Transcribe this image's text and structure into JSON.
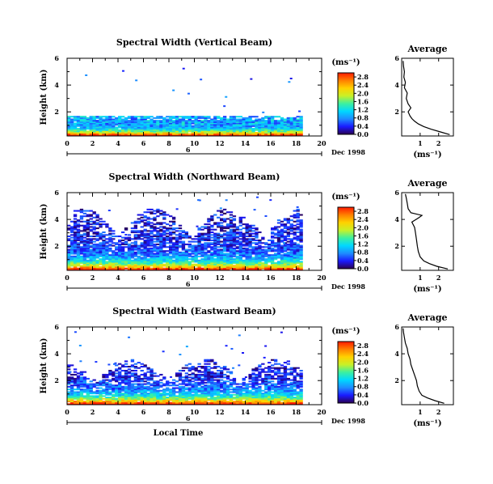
{
  "chart_data": [
    {
      "type": "heatmap",
      "title": "Spectral Width (Vertical Beam)",
      "ylabel": "Height (km)",
      "yticks": [
        "2",
        "4",
        "6"
      ],
      "ylim": [
        0.2,
        6.0
      ],
      "xticks": [
        "0",
        "2",
        "4",
        "6",
        "8",
        "10",
        "12",
        "14",
        "16",
        "18",
        "20"
      ],
      "xlim": [
        0,
        20
      ],
      "date_label": "Dec 1998",
      "day_marker": "6",
      "unit": "(ms⁻¹)",
      "colorbar_ticks": [
        "0.0",
        "0.4",
        "0.8",
        "1.2",
        "1.6",
        "2.0",
        "2.4",
        "2.8"
      ],
      "colorbar_range": [
        0.0,
        3.0
      ],
      "data_extent_hours": [
        0,
        18.3
      ],
      "max_height_km": 1.7,
      "avg_xticks": [
        "1",
        "2"
      ],
      "avg_xlim": [
        0,
        2.8
      ],
      "avg_ylim": [
        0.2,
        6.0
      ],
      "avg_yticks": [
        "2",
        "4",
        "6"
      ],
      "avg_profile": {
        "height": [
          0.3,
          0.5,
          0.7,
          0.9,
          1.1,
          1.3,
          1.5,
          1.7,
          2.0,
          2.3,
          2.6,
          3.0,
          3.4,
          3.8,
          4.2,
          4.6,
          5.0,
          5.4,
          5.8
        ],
        "width": [
          2.6,
          2.1,
          1.6,
          1.2,
          0.9,
          0.7,
          0.55,
          0.45,
          0.35,
          0.5,
          0.35,
          0.25,
          0.3,
          0.15,
          0.2,
          0.12,
          0.15,
          0.1,
          0.08
        ]
      }
    },
    {
      "type": "heatmap",
      "title": "Spectral Width (Northward Beam)",
      "ylabel": "Height (km)",
      "yticks": [
        "2",
        "4",
        "6"
      ],
      "ylim": [
        0.2,
        6.0
      ],
      "xticks": [
        "0",
        "2",
        "4",
        "6",
        "8",
        "10",
        "12",
        "14",
        "16",
        "18",
        "20"
      ],
      "xlim": [
        0,
        20
      ],
      "date_label": "Dec 1998",
      "day_marker": "6",
      "unit": "(ms⁻¹)",
      "colorbar_ticks": [
        "0.0",
        "0.4",
        "0.8",
        "1.2",
        "1.6",
        "2.0",
        "2.4",
        "2.8"
      ],
      "colorbar_range": [
        0.0,
        3.0
      ],
      "data_extent_hours": [
        0,
        18.3
      ],
      "max_height_km": 4.8,
      "avg_xticks": [
        "1",
        "2"
      ],
      "avg_xlim": [
        0,
        2.8
      ],
      "avg_ylim": [
        0.2,
        6.0
      ],
      "avg_yticks": [
        "2",
        "4",
        "6"
      ],
      "avg_profile": {
        "height": [
          0.3,
          0.5,
          0.7,
          0.9,
          1.2,
          1.6,
          2.0,
          2.5,
          3.0,
          3.4,
          3.8,
          4.1,
          4.3,
          4.5,
          4.8,
          5.2,
          5.6,
          5.9
        ],
        "width": [
          2.5,
          1.9,
          1.5,
          1.2,
          1.0,
          0.9,
          0.85,
          0.8,
          0.75,
          0.7,
          0.55,
          0.9,
          1.1,
          0.5,
          0.35,
          0.3,
          0.25,
          0.2
        ]
      }
    },
    {
      "type": "heatmap",
      "title": "Spectral Width (Eastward Beam)",
      "ylabel": "Height (km)",
      "yticks": [
        "2",
        "4",
        "6"
      ],
      "ylim": [
        0.2,
        6.0
      ],
      "xticks": [
        "0",
        "2",
        "4",
        "6",
        "8",
        "10",
        "12",
        "14",
        "16",
        "18",
        "20"
      ],
      "xlim": [
        0,
        20
      ],
      "xlabel": "Local Time",
      "date_label": "Dec 1998",
      "day_marker": "6",
      "unit": "(ms⁻¹)",
      "colorbar_ticks": [
        "0.0",
        "0.4",
        "0.8",
        "1.2",
        "1.6",
        "2.0",
        "2.4",
        "2.8"
      ],
      "colorbar_range": [
        0.0,
        3.0
      ],
      "data_extent_hours": [
        0,
        18.3
      ],
      "max_height_km": 3.6,
      "avg_xticks": [
        "1",
        "2"
      ],
      "avg_xlim": [
        0,
        2.8
      ],
      "avg_ylim": [
        0.2,
        6.0
      ],
      "avg_yticks": [
        "2",
        "4",
        "6"
      ],
      "avg_profile": {
        "height": [
          0.3,
          0.5,
          0.7,
          0.9,
          1.2,
          1.6,
          2.0,
          2.4,
          2.8,
          3.2,
          3.6,
          4.0,
          4.4,
          4.8,
          5.2,
          5.6,
          5.9
        ],
        "width": [
          2.3,
          1.8,
          1.4,
          1.1,
          0.95,
          0.85,
          0.8,
          0.7,
          0.6,
          0.5,
          0.45,
          0.35,
          0.3,
          0.2,
          0.15,
          0.1,
          0.08
        ]
      }
    }
  ],
  "avg_title": "Average",
  "colors": {
    "colorbar_stops": [
      "#2a0050",
      "#1a1aff",
      "#1e8cff",
      "#00d8ff",
      "#3cf0a0",
      "#c8f028",
      "#ffd200",
      "#ff8000",
      "#ff1a00"
    ]
  }
}
